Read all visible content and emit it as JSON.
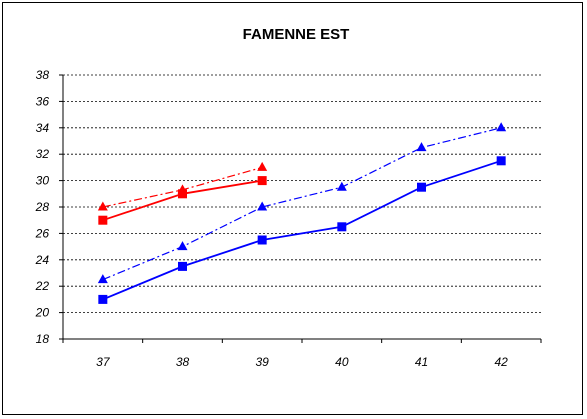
{
  "chart_data": {
    "type": "line",
    "title": "FAMENNE EST",
    "xlabel": "",
    "ylabel": "",
    "x": [
      37,
      38,
      39,
      40,
      41,
      42
    ],
    "x_tick_labels": [
      "37",
      "38",
      "39",
      "40",
      "41",
      "42"
    ],
    "ylim": [
      18,
      38
    ],
    "y_ticks": [
      18,
      20,
      22,
      24,
      26,
      28,
      30,
      32,
      34,
      36,
      38
    ],
    "y_tick_labels": [
      "18",
      "20",
      "22",
      "24",
      "26",
      "28",
      "30",
      "32",
      "34",
      "36",
      "38"
    ],
    "grid": {
      "horizontal": true,
      "vertical": false,
      "style": "dashed"
    },
    "legend": "none",
    "series": [
      {
        "color": "#ff0000",
        "marker": "square",
        "line": "solid",
        "x": [
          37,
          38,
          39
        ],
        "values": [
          27,
          29,
          30
        ]
      },
      {
        "color": "#ff0000",
        "marker": "triangle",
        "line": "dashdot",
        "x": [
          37,
          38,
          39
        ],
        "values": [
          28,
          29.3,
          31
        ]
      },
      {
        "color": "#0000ff",
        "marker": "square",
        "line": "solid",
        "x": [
          37,
          38,
          39,
          40,
          41,
          42
        ],
        "values": [
          21,
          23.5,
          25.5,
          26.5,
          29.5,
          31.5
        ]
      },
      {
        "color": "#0000ff",
        "marker": "triangle",
        "line": "dashdot",
        "x": [
          37,
          38,
          39,
          40,
          41,
          42
        ],
        "values": [
          22.5,
          25,
          28,
          29.5,
          32.5,
          34
        ]
      }
    ]
  }
}
